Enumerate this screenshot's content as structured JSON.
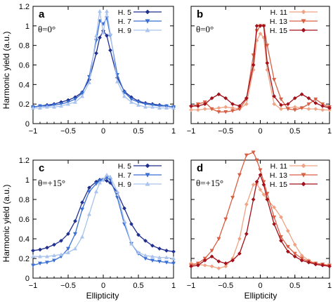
{
  "figure": {
    "ylabel": "Harmonic yield (a.u.)",
    "xlabel": "Ellipticity"
  },
  "chart_data": [
    {
      "panel": "a",
      "type": "line",
      "annotation": "θ=0°",
      "xlim": [
        -1,
        1
      ],
      "ylim": [
        0,
        1.2
      ],
      "xticks": [
        "−1",
        "−0.5",
        "0",
        "0.5",
        "1"
      ],
      "yticks": [
        "0",
        "0.2",
        "0.4",
        "0.6",
        "0.8",
        "1",
        "1.2"
      ],
      "grid": false,
      "legend_position": "top-right",
      "x": [
        -1.0,
        -0.9,
        -0.8,
        -0.7,
        -0.6,
        -0.5,
        -0.4,
        -0.3,
        -0.2,
        -0.1,
        -0.05,
        0.0,
        0.05,
        0.1,
        0.2,
        0.3,
        0.4,
        0.5,
        0.6,
        0.7,
        0.8,
        0.9,
        1.0
      ],
      "series": [
        {
          "name": "H. 5",
          "color": "#1f2f8f",
          "marker": "diamond",
          "values": [
            0.17,
            0.18,
            0.19,
            0.2,
            0.22,
            0.24,
            0.27,
            0.32,
            0.45,
            0.72,
            0.88,
            0.95,
            0.9,
            0.75,
            0.47,
            0.33,
            0.27,
            0.23,
            0.21,
            0.2,
            0.19,
            0.18,
            0.17
          ]
        },
        {
          "name": "H. 7",
          "color": "#3a6fd4",
          "marker": "triangle-down",
          "values": [
            0.17,
            0.18,
            0.18,
            0.19,
            0.2,
            0.22,
            0.25,
            0.31,
            0.48,
            0.85,
            1.05,
            1.02,
            1.08,
            0.9,
            0.5,
            0.32,
            0.25,
            0.22,
            0.2,
            0.19,
            0.18,
            0.18,
            0.17
          ]
        },
        {
          "name": "H. 9",
          "color": "#a9c3ee",
          "marker": "triangle-up",
          "values": [
            0.16,
            0.16,
            0.17,
            0.17,
            0.18,
            0.2,
            0.22,
            0.28,
            0.42,
            0.9,
            1.15,
            0.93,
            1.15,
            0.92,
            0.43,
            0.28,
            0.22,
            0.19,
            0.17,
            0.17,
            0.16,
            0.16,
            0.16
          ]
        }
      ]
    },
    {
      "panel": "b",
      "type": "line",
      "annotation": "θ=0°",
      "xlim": [
        -1,
        1
      ],
      "ylim": [
        0,
        1.2
      ],
      "xticks": [
        "−1",
        "−0.5",
        "0",
        "0.5",
        "1"
      ],
      "yticks": [],
      "grid": false,
      "legend_position": "top-right",
      "x": [
        -1.0,
        -0.9,
        -0.8,
        -0.7,
        -0.6,
        -0.5,
        -0.4,
        -0.3,
        -0.2,
        -0.1,
        -0.05,
        0.0,
        0.05,
        0.1,
        0.2,
        0.3,
        0.4,
        0.5,
        0.6,
        0.7,
        0.8,
        0.9,
        1.0
      ],
      "series": [
        {
          "name": "H. 11",
          "color": "#f0a384",
          "marker": "diamond",
          "values": [
            0.14,
            0.14,
            0.15,
            0.15,
            0.16,
            0.17,
            0.16,
            0.15,
            0.2,
            0.55,
            0.85,
            0.92,
            0.88,
            0.55,
            0.2,
            0.15,
            0.16,
            0.17,
            0.16,
            0.15,
            0.15,
            0.14,
            0.14
          ]
        },
        {
          "name": "H. 13",
          "color": "#d95f43",
          "marker": "triangle-down",
          "values": [
            0.17,
            0.2,
            0.22,
            0.15,
            0.12,
            0.12,
            0.13,
            0.15,
            0.25,
            0.7,
            0.95,
            1.0,
            1.0,
            0.8,
            0.45,
            0.25,
            0.15,
            0.14,
            0.16,
            0.2,
            0.25,
            0.2,
            0.17
          ]
        },
        {
          "name": "H. 15",
          "color": "#a3101a",
          "marker": "diamond",
          "values": [
            0.18,
            0.18,
            0.2,
            0.26,
            0.3,
            0.26,
            0.2,
            0.18,
            0.26,
            0.6,
            1.0,
            1.0,
            1.0,
            0.62,
            0.28,
            0.19,
            0.2,
            0.26,
            0.3,
            0.26,
            0.21,
            0.18,
            0.16
          ]
        }
      ]
    },
    {
      "panel": "c",
      "type": "line",
      "annotation": "θ=+15°",
      "xlim": [
        -1,
        1
      ],
      "ylim": [
        0,
        1.2
      ],
      "xticks": [
        "−1",
        "−0.5",
        "0",
        "0.5",
        "1"
      ],
      "yticks": [
        "0",
        "0.2",
        "0.4",
        "0.6",
        "0.8",
        "1",
        "1.2"
      ],
      "grid": false,
      "legend_position": "top-right",
      "x": [
        -1.0,
        -0.9,
        -0.8,
        -0.7,
        -0.6,
        -0.5,
        -0.4,
        -0.3,
        -0.2,
        -0.1,
        -0.05,
        0.0,
        0.05,
        0.1,
        0.2,
        0.3,
        0.4,
        0.5,
        0.6,
        0.7,
        0.8,
        0.9,
        1.0
      ],
      "series": [
        {
          "name": "H. 5",
          "color": "#1f2f8f",
          "marker": "diamond",
          "values": [
            0.28,
            0.29,
            0.31,
            0.34,
            0.38,
            0.45,
            0.58,
            0.77,
            0.92,
            0.98,
            1.0,
            1.0,
            0.99,
            0.97,
            0.87,
            0.71,
            0.55,
            0.44,
            0.38,
            0.33,
            0.3,
            0.28,
            0.27
          ]
        },
        {
          "name": "H. 7",
          "color": "#3a6fd4",
          "marker": "triangle-down",
          "values": [
            0.13,
            0.15,
            0.16,
            0.18,
            0.22,
            0.3,
            0.45,
            0.7,
            0.88,
            0.96,
            0.99,
            1.0,
            1.02,
            1.0,
            0.82,
            0.55,
            0.35,
            0.25,
            0.2,
            0.18,
            0.17,
            0.16,
            0.15
          ]
        },
        {
          "name": "H. 9",
          "color": "#a9c3ee",
          "marker": "triangle-up",
          "values": [
            0.22,
            0.22,
            0.22,
            0.23,
            0.24,
            0.26,
            0.3,
            0.42,
            0.65,
            0.88,
            0.97,
            1.0,
            1.05,
            1.03,
            0.88,
            0.58,
            0.35,
            0.26,
            0.23,
            0.22,
            0.21,
            0.21,
            0.2
          ]
        }
      ]
    },
    {
      "panel": "d",
      "type": "line",
      "annotation": "θ=+15°",
      "xlim": [
        -1,
        1
      ],
      "ylim": [
        0,
        1.2
      ],
      "xticks": [
        "−1",
        "−0.5",
        "0",
        "0.5",
        "1"
      ],
      "yticks": [],
      "grid": false,
      "legend_position": "top-right",
      "x": [
        -1.0,
        -0.9,
        -0.8,
        -0.7,
        -0.6,
        -0.5,
        -0.4,
        -0.3,
        -0.2,
        -0.1,
        -0.05,
        0.0,
        0.05,
        0.1,
        0.2,
        0.3,
        0.4,
        0.5,
        0.6,
        0.7,
        0.8,
        0.9,
        1.0
      ],
      "series": [
        {
          "name": "H. 11",
          "color": "#f0a384",
          "marker": "diamond",
          "values": [
            0.15,
            0.14,
            0.13,
            0.12,
            0.1,
            0.12,
            0.2,
            0.4,
            0.75,
            0.95,
            0.96,
            0.9,
            0.85,
            0.8,
            0.72,
            0.62,
            0.48,
            0.34,
            0.23,
            0.18,
            0.15,
            0.14,
            0.13
          ]
        },
        {
          "name": "H. 13",
          "color": "#d95f43",
          "marker": "triangle-down",
          "values": [
            0.13,
            0.15,
            0.2,
            0.28,
            0.4,
            0.6,
            0.82,
            1.05,
            1.25,
            1.28,
            1.2,
            1.1,
            0.98,
            0.86,
            0.62,
            0.42,
            0.32,
            0.25,
            0.2,
            0.17,
            0.15,
            0.14,
            0.13
          ]
        },
        {
          "name": "H. 15",
          "color": "#a3101a",
          "marker": "diamond",
          "values": [
            0.12,
            0.13,
            0.18,
            0.22,
            0.17,
            0.15,
            0.18,
            0.25,
            0.45,
            0.8,
            0.98,
            1.05,
            0.95,
            0.8,
            0.55,
            0.38,
            0.27,
            0.22,
            0.18,
            0.16,
            0.14,
            0.13,
            0.12
          ]
        }
      ]
    }
  ]
}
